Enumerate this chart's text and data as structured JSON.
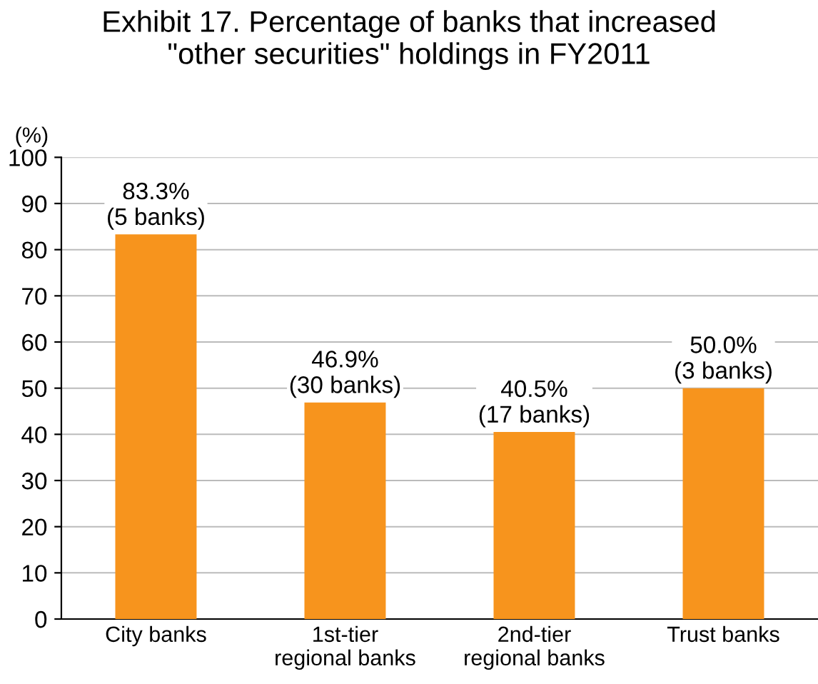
{
  "chart_data": {
    "type": "bar",
    "title": "Exhibit 17. Percentage of banks that increased\n\"other securities\" holdings in FY2011",
    "ylabel": "(%)",
    "categories": [
      "City banks",
      "1st-tier\nregional banks",
      "2nd-tier\nregional banks",
      "Trust banks"
    ],
    "values": [
      83.3,
      46.9,
      40.5,
      50.0
    ],
    "value_labels": [
      "83.3%\n(5 banks)",
      "46.9%\n(30 banks)",
      "40.5%\n(17 banks)",
      "50.0%\n(3 banks)"
    ],
    "color": "#f7941d",
    "ylim": [
      0,
      100
    ],
    "yticks": [
      0,
      10,
      20,
      30,
      40,
      50,
      60,
      70,
      80,
      90,
      100
    ],
    "grid": "y"
  }
}
